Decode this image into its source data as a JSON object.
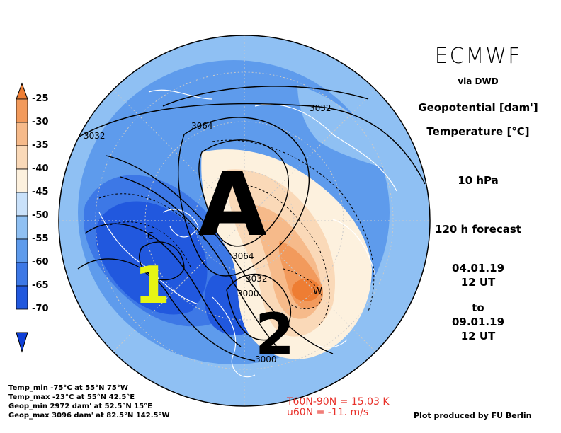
{
  "header": {
    "title": "ECMWF",
    "source": "via DWD"
  },
  "fields": {
    "geopotential": "Geopotential [dam']",
    "temperature": "Temperature [°C]"
  },
  "level": "10 hPa",
  "forecast": "120 h forecast",
  "valid": {
    "from_date": "04.01.19",
    "from_time": "12 UT",
    "to": "to",
    "to_date": "09.01.19",
    "to_time": "12 UT"
  },
  "colorbar": {
    "labels": [
      "-25",
      "-30",
      "-35",
      "-40",
      "-45",
      "-50",
      "-55",
      "-60",
      "-65",
      "-70"
    ],
    "colors": [
      "#ee7d33",
      "#f29a5c",
      "#f6ba8a",
      "#fad9b8",
      "#fdf1de",
      "#c9e1fa",
      "#8fc0f3",
      "#5e9bec",
      "#3d78e6",
      "#2158de",
      "#0f3fd6"
    ]
  },
  "annotations": {
    "high": "A",
    "vortex1": "1",
    "vortex2": "2"
  },
  "contours": {
    "c3032a": "3032",
    "c3064a": "3064",
    "c3032b": "3032",
    "c3064b": "3064",
    "c3032c": "3032",
    "c3000a": "3000",
    "c3000b": "3000",
    "warm": "W",
    "cold": "C"
  },
  "stats": {
    "temp_min": "Temp_min -75°C at 55°N 75°W",
    "temp_max": "Temp_max -23°C at 55°N 42.5°E",
    "geop_min": "Geop_min 2972 dam' at 52.5°N 15°E",
    "geop_max": "Geop_max 3096 dam' at 82.5°N 142.5°W"
  },
  "diagnostics": {
    "t_diff": "T60N-90N = 15.03 K",
    "u_wind": "u60N = -11. m/s"
  },
  "credit": "Plot produced by FU Berlin"
}
